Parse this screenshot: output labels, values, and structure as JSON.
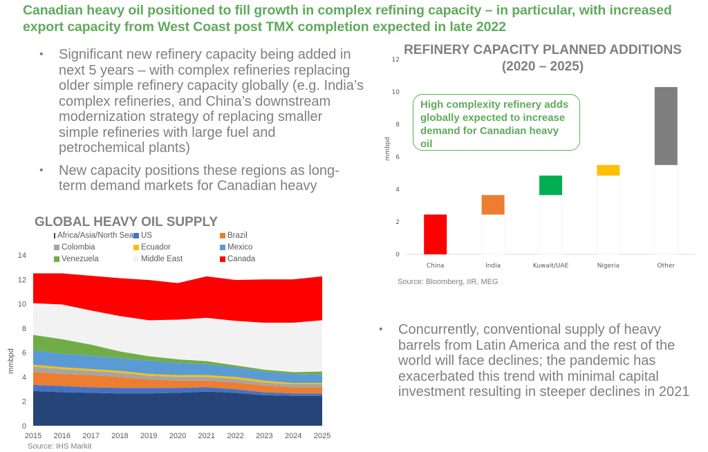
{
  "slide": {
    "title": "Canadian heavy oil positioned to fill growth in complex refining capacity – in particular, with increased export capacity from West Coast post TMX completion expected in late 2022",
    "left_bullets": [
      "Significant new refinery capacity being added in next 5 years – with complex refineries replacing older simple refinery capacity globally (e.g. India’s complex refineries, and China’s downstream modernization strategy of replacing smaller simple refineries with large fuel and petrochemical plants)",
      "New capacity positions these regions as long-term demand markets for Canadian heavy"
    ],
    "right_bullets": [
      "Concurrently, conventional supply of heavy barrels from Latin America and the rest of the world will face declines; the pandemic has exacerbated this trend with minimal capital investment resulting in steeper declines in 2021"
    ],
    "callout": "High complexity refinery adds globally expected to increase demand for Canadian heavy oil"
  },
  "chart_data": [
    {
      "type": "area",
      "stacked": true,
      "title": "GLOBAL HEAVY OIL SUPPLY",
      "xlabel": "",
      "ylabel": "mmbpd",
      "x": [
        2015,
        2016,
        2017,
        2018,
        2019,
        2020,
        2021,
        2022,
        2023,
        2024,
        2025
      ],
      "ylim": [
        0,
        14
      ],
      "yticks": [
        0,
        2,
        4,
        6,
        8,
        10,
        12,
        14
      ],
      "grid": false,
      "legend_position": "top",
      "source": "Source: IHS Markit",
      "series": [
        {
          "name": "Africa/Asia/North Sea",
          "color": "#264478",
          "values": [
            2.85,
            2.75,
            2.7,
            2.65,
            2.65,
            2.7,
            2.8,
            2.7,
            2.5,
            2.45,
            2.45
          ]
        },
        {
          "name": "US",
          "color": "#4472c4",
          "values": [
            0.5,
            0.5,
            0.45,
            0.45,
            0.45,
            0.4,
            0.35,
            0.3,
            0.25,
            0.2,
            0.2
          ]
        },
        {
          "name": "Brazil",
          "color": "#ed7d31",
          "values": [
            1.05,
            1.0,
            1.0,
            0.9,
            0.7,
            0.6,
            0.55,
            0.55,
            0.55,
            0.5,
            0.5
          ]
        },
        {
          "name": "Colombia",
          "color": "#a5a5a5",
          "values": [
            0.45,
            0.4,
            0.35,
            0.35,
            0.3,
            0.3,
            0.3,
            0.3,
            0.25,
            0.25,
            0.25
          ]
        },
        {
          "name": "Ecuador",
          "color": "#ffc000",
          "values": [
            0.15,
            0.15,
            0.15,
            0.15,
            0.15,
            0.15,
            0.15,
            0.15,
            0.15,
            0.1,
            0.1
          ]
        },
        {
          "name": "Mexico",
          "color": "#5b9bd5",
          "values": [
            1.2,
            1.1,
            1.1,
            1.05,
            1.1,
            1.0,
            0.9,
            0.8,
            0.75,
            0.75,
            0.7
          ]
        },
        {
          "name": "Venezuela",
          "color": "#70ad47",
          "values": [
            1.25,
            1.2,
            0.9,
            0.55,
            0.35,
            0.3,
            0.25,
            0.15,
            0.15,
            0.15,
            0.25
          ]
        },
        {
          "name": "Middle East",
          "color": "#f2f2f2",
          "values": [
            2.6,
            2.85,
            2.8,
            2.9,
            2.95,
            3.25,
            3.55,
            3.65,
            3.85,
            4.05,
            4.2
          ]
        },
        {
          "name": "Canada",
          "color": "#ff0000",
          "values": [
            2.45,
            2.55,
            2.85,
            3.1,
            3.3,
            3.0,
            3.4,
            3.35,
            3.55,
            3.55,
            3.6
          ]
        }
      ]
    },
    {
      "type": "bar",
      "subtype": "waterfall",
      "title": "REFINERY CAPACITY PLANNED ADDITIONS (2020 – 2025)",
      "title_lines": [
        "REFINERY CAPACITY PLANNED ADDITIONS",
        "(2020 – 2025)"
      ],
      "xlabel": "",
      "ylabel": "mmbpd",
      "categories": [
        "China",
        "India",
        "Kuwait/UAE",
        "Nigeria",
        "Other"
      ],
      "values": [
        2.45,
        1.2,
        1.2,
        0.65,
        4.8
      ],
      "colors": [
        "#ff0000",
        "#ed7d31",
        "#00b050",
        "#ffc000",
        "#7f7f7f"
      ],
      "ylim": [
        0,
        12
      ],
      "yticks": [
        0,
        2,
        4,
        6,
        8,
        10,
        12
      ],
      "grid": false,
      "source": "Source: Bloomberg, IIR, MEG"
    }
  ]
}
